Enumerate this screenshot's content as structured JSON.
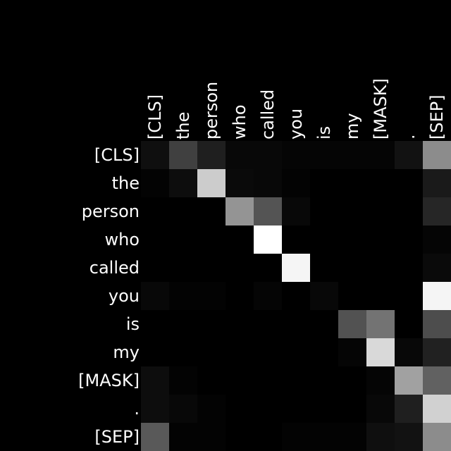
{
  "chart_data": {
    "type": "heatmap",
    "title": "",
    "xlabel": "",
    "ylabel": "",
    "x_labels": [
      "[CLS]",
      "the",
      "person",
      "who",
      "called",
      "you",
      "is",
      "my",
      "[MASK]",
      ".",
      "[SEP]"
    ],
    "y_labels": [
      "[CLS]",
      "the",
      "person",
      "who",
      "called",
      "you",
      "is",
      "my",
      "[MASK]",
      ".",
      "[SEP]"
    ],
    "colormap": "grayscale",
    "vmin": 0,
    "vmax": 1,
    "values": [
      [
        0.06,
        0.25,
        0.12,
        0.03,
        0.03,
        0.02,
        0.02,
        0.02,
        0.02,
        0.07,
        0.55
      ],
      [
        0.01,
        0.05,
        0.8,
        0.04,
        0.03,
        0.01,
        0.0,
        0.0,
        0.0,
        0.0,
        0.1
      ],
      [
        0.0,
        0.0,
        0.0,
        0.58,
        0.33,
        0.03,
        0.0,
        0.0,
        0.0,
        0.0,
        0.15
      ],
      [
        0.0,
        0.0,
        0.0,
        0.0,
        1.0,
        0.0,
        0.0,
        0.0,
        0.0,
        0.0,
        0.02
      ],
      [
        0.0,
        0.0,
        0.0,
        0.0,
        0.0,
        0.96,
        0.0,
        0.0,
        0.0,
        0.0,
        0.04
      ],
      [
        0.03,
        0.01,
        0.01,
        0.0,
        0.02,
        0.0,
        0.03,
        0.0,
        0.0,
        0.0,
        0.96
      ],
      [
        0.0,
        0.0,
        0.0,
        0.0,
        0.0,
        0.0,
        0.0,
        0.32,
        0.45,
        0.0,
        0.3
      ],
      [
        0.0,
        0.0,
        0.0,
        0.0,
        0.0,
        0.0,
        0.0,
        0.02,
        0.85,
        0.03,
        0.13
      ],
      [
        0.05,
        0.01,
        0.0,
        0.0,
        0.0,
        0.0,
        0.0,
        0.0,
        0.02,
        0.63,
        0.38
      ],
      [
        0.05,
        0.03,
        0.01,
        0.0,
        0.0,
        0.0,
        0.0,
        0.0,
        0.03,
        0.12,
        0.82
      ],
      [
        0.35,
        0.01,
        0.01,
        0.0,
        0.0,
        0.01,
        0.01,
        0.01,
        0.06,
        0.07,
        0.55
      ]
    ]
  }
}
